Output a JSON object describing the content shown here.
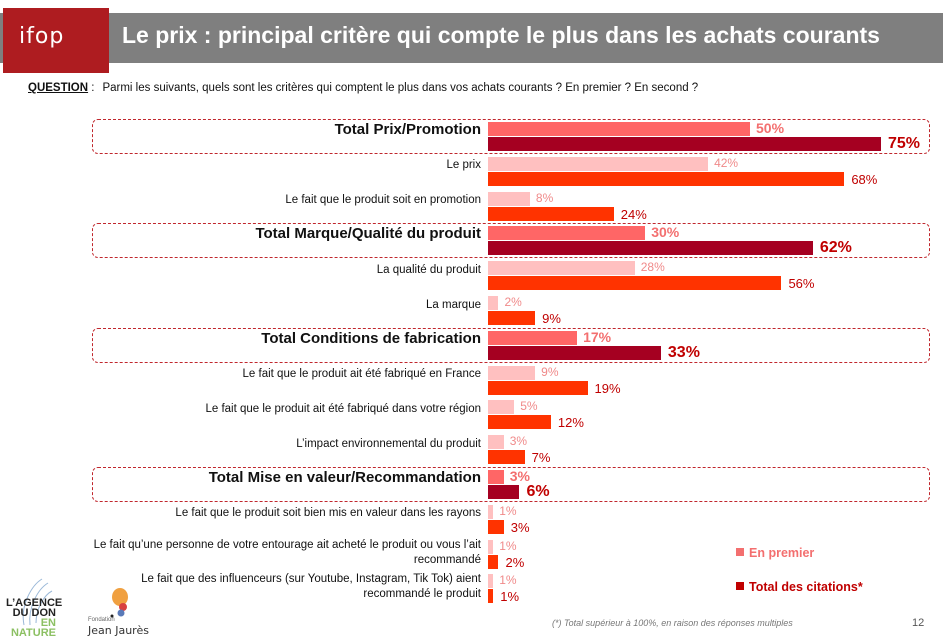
{
  "header": {
    "logo": "ifop",
    "title": "Le prix : principal critère qui compte le plus dans les achats courants"
  },
  "question": {
    "label": "QUESTION",
    "separator": " :",
    "text": "Parmi les suivants, quels sont les critères qui comptent le plus dans vos achats courants ? En premier ? En second ?"
  },
  "colors": {
    "first_total": "#ff6666",
    "citations_total": "#a50021",
    "first_item": "#ffc0c0",
    "citations_item": "#ff3300",
    "box_border": "#c0272d",
    "header_bg": "#7f7f7f",
    "logo_bg": "#ae1c20"
  },
  "chart_data": {
    "type": "bar",
    "orientation": "horizontal",
    "title": "Le prix : principal critère qui compte le plus dans les achats courants",
    "xlabel": "",
    "ylabel": "",
    "xlim": [
      0,
      100
    ],
    "grid": false,
    "legend_position": "bottom-right",
    "categories": [
      "Total Prix/Promotion",
      "Le prix",
      "Le fait que le produit soit en promotion",
      "Total Marque/Qualité du produit",
      "La qualité du produit",
      "La marque",
      "Total Conditions de fabrication",
      "Le fait que le produit ait été fabriqué en France",
      "Le fait que le produit ait été fabriqué dans votre région",
      "L’impact environnemental du produit",
      "Total Mise en valeur/Recommandation",
      "Le fait que le produit soit bien mis en valeur dans les rayons",
      "Le fait qu’une personne de votre entourage ait acheté le produit ou vous l’ait recommandé",
      "Le fait que des influenceurs (sur Youtube, Instagram, Tik Tok) aient recommandé le produit"
    ],
    "is_total": [
      true,
      false,
      false,
      true,
      false,
      false,
      true,
      false,
      false,
      false,
      true,
      false,
      false,
      false
    ],
    "series": [
      {
        "name": "En premier",
        "values": [
          50,
          42,
          8,
          30,
          28,
          2,
          17,
          9,
          5,
          3,
          3,
          1,
          1,
          1
        ]
      },
      {
        "name": "Total des citations*",
        "values": [
          75,
          68,
          24,
          62,
          56,
          9,
          33,
          19,
          12,
          7,
          6,
          3,
          2,
          1
        ]
      }
    ],
    "value_suffix": "%"
  },
  "rows_display": [
    {
      "label": [
        "Total Prix/Promotion"
      ]
    },
    {
      "label": [
        "Le prix"
      ]
    },
    {
      "label": [
        "Le fait que le produit soit en promotion"
      ]
    },
    {
      "label": [
        "Total Marque/Qualité du produit"
      ]
    },
    {
      "label": [
        "La qualité du produit"
      ]
    },
    {
      "label": [
        "La marque"
      ]
    },
    {
      "label": [
        "Total Conditions de fabrication"
      ]
    },
    {
      "label": [
        "Le fait que le produit ait été fabriqué en France"
      ]
    },
    {
      "label": [
        "Le fait que le produit ait été fabriqué dans votre région"
      ]
    },
    {
      "label": [
        "L’impact environnemental du produit"
      ]
    },
    {
      "label": [
        "Total Mise en valeur/Recommandation"
      ]
    },
    {
      "label": [
        "Le fait que le produit soit bien mis en valeur dans les rayons"
      ]
    },
    {
      "label": [
        "Le fait qu’une personne de votre entourage ait acheté le produit ou vous l’ait",
        "recommandé"
      ]
    },
    {
      "label": [
        "Le fait que des influenceurs (sur Youtube, Instagram, Tik Tok) aient",
        "recommandé le produit"
      ]
    }
  ],
  "legend": {
    "first": "En premier",
    "total": "Total des citations*"
  },
  "footer": {
    "footnote": "(*) Total supérieur à 100%, en raison des réponses multiples",
    "page_number": "12",
    "logo_agence": [
      "L’AGENCE",
      "DU DON",
      "EN NATURE"
    ],
    "logo_jaures_small": "Fondation",
    "logo_jaures_name": "Jean Jaurès"
  }
}
